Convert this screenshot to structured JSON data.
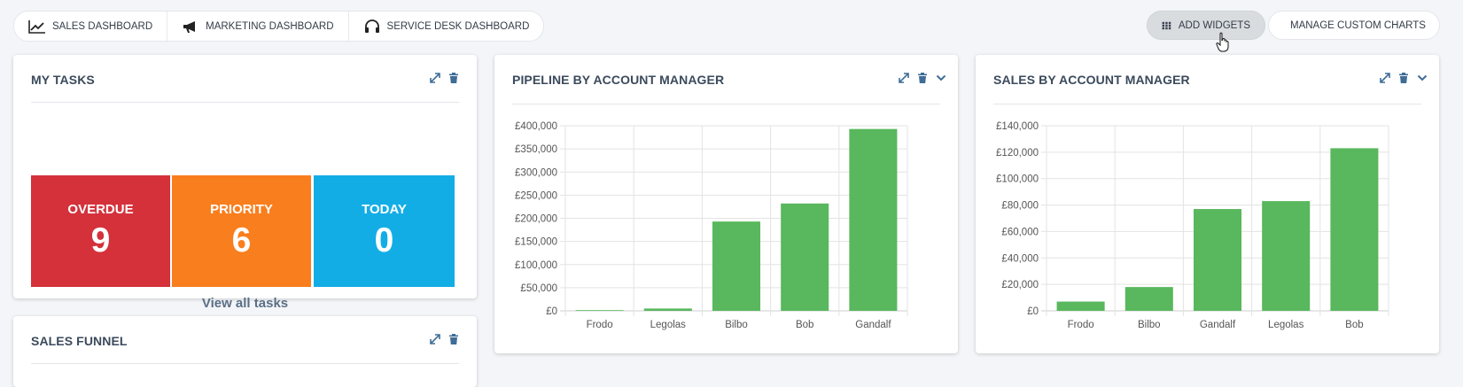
{
  "tabs": [
    {
      "label": "SALES DASHBOARD",
      "icon": "line-chart-icon"
    },
    {
      "label": "MARKETING DASHBOARD",
      "icon": "megaphone-icon"
    },
    {
      "label": "SERVICE DESK DASHBOARD",
      "icon": "headset-icon"
    }
  ],
  "toolbar": {
    "add_widgets": "ADD WIDGETS",
    "add_widgets_icon": "grid-icon",
    "manage_charts": "MANAGE CUSTOM CHARTS",
    "manage_charts_icon": "copy-chart-icon"
  },
  "my_tasks": {
    "title": "MY TASKS",
    "tiles": [
      {
        "label": "OVERDUE",
        "value": "9",
        "color": "#d4313b"
      },
      {
        "label": "PRIORITY",
        "value": "6",
        "color": "#f97e1d"
      },
      {
        "label": "TODAY",
        "value": "0",
        "color": "#13ade6"
      }
    ],
    "view_all": "View all tasks"
  },
  "sales_funnel": {
    "title": "SALES FUNNEL"
  },
  "colors": {
    "bar": "#59b75d",
    "grid": "#e3e3e3",
    "icon": "#3f6d97"
  },
  "chart_data": [
    {
      "type": "bar",
      "title": "PIPELINE BY ACCOUNT MANAGER",
      "categories": [
        "Frodo",
        "Legolas",
        "Bilbo",
        "Bob",
        "Gandalf"
      ],
      "values": [
        1500,
        5000,
        193000,
        232000,
        393000
      ],
      "yticks": [
        "£0",
        "£50,000",
        "£100,000",
        "£150,000",
        "£200,000",
        "£250,000",
        "£300,000",
        "£350,000",
        "£400,000"
      ],
      "ylim": [
        0,
        400000
      ],
      "grid": true
    },
    {
      "type": "bar",
      "title": "SALES BY ACCOUNT MANAGER",
      "categories": [
        "Frodo",
        "Bilbo",
        "Gandalf",
        "Legolas",
        "Bob"
      ],
      "values": [
        7000,
        18000,
        77000,
        83000,
        123000
      ],
      "yticks": [
        "£0",
        "£20,000",
        "£40,000",
        "£60,000",
        "£80,000",
        "£100,000",
        "£120,000",
        "£140,000"
      ],
      "ylim": [
        0,
        140000
      ],
      "grid": true
    }
  ]
}
